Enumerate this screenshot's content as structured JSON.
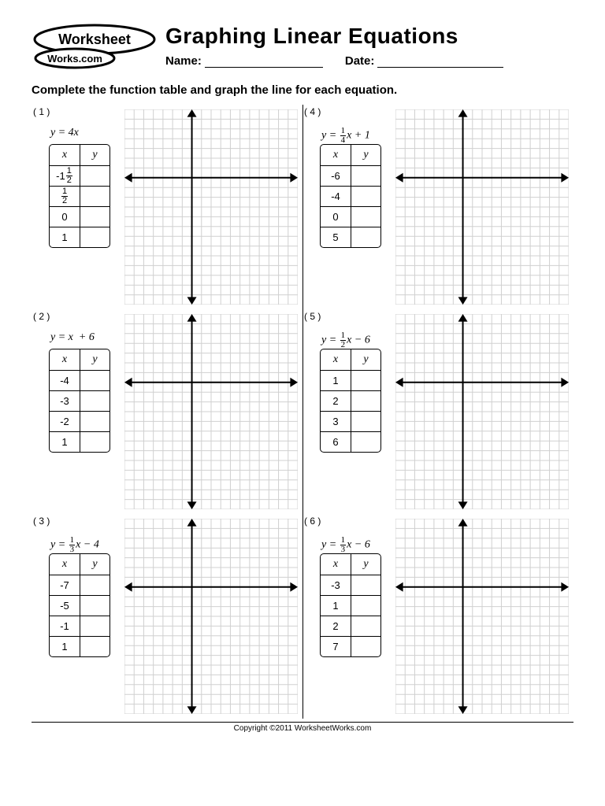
{
  "header": {
    "logo_top": "Worksheet",
    "logo_bottom": "Works.com",
    "title": "Graphing Linear Equations",
    "name_label": "Name:",
    "date_label": "Date:"
  },
  "instructions": "Complete the function table and graph the line for each equation.",
  "grid": {
    "cols": 18,
    "rows": 20,
    "line_color": "#d0d0d0",
    "axis_color": "#000000",
    "axis_width": 2,
    "axis_col": 7,
    "axis_row": 7
  },
  "table_headers": {
    "x": "x",
    "y": "y"
  },
  "problems": [
    {
      "num": "( 1 )",
      "equation_html": "<i>y</i> = 4<i>x</i>",
      "xvals": [
        "-1<span class='frac'><span class='n'>1</span><span class='d'>2</span></span>",
        "<span class='frac'><span class='n'>1</span><span class='d'>2</span></span>",
        "0",
        "1"
      ]
    },
    {
      "num": "( 2 )",
      "equation_html": "<i>y</i> = <i>x</i>&nbsp; + 6",
      "xvals": [
        "-4",
        "-3",
        "-2",
        "1"
      ]
    },
    {
      "num": "( 3 )",
      "equation_html": "<i>y</i> = <span class='frac'><span class='n'>1</span><span class='d'>3</span></span><i>x</i> − 4",
      "xvals": [
        "-7",
        "-5",
        "-1",
        "1"
      ]
    },
    {
      "num": "( 4 )",
      "equation_html": "<i>y</i> = <span class='frac'><span class='n'>1</span><span class='d'>4</span></span><i>x</i> + 1",
      "xvals": [
        "-6",
        "-4",
        "0",
        "5"
      ]
    },
    {
      "num": "( 5 )",
      "equation_html": "<i>y</i> = <span class='frac'><span class='n'>1</span><span class='d'>2</span></span><i>x</i> − 6",
      "xvals": [
        "1",
        "2",
        "3",
        "6"
      ]
    },
    {
      "num": "( 6 )",
      "equation_html": "<i>y</i> = <span class='frac'><span class='n'>1</span><span class='d'>3</span></span><i>x</i> − 6",
      "xvals": [
        "-3",
        "1",
        "2",
        "7"
      ]
    }
  ],
  "footer": "Copyright ©2011 WorksheetWorks.com"
}
